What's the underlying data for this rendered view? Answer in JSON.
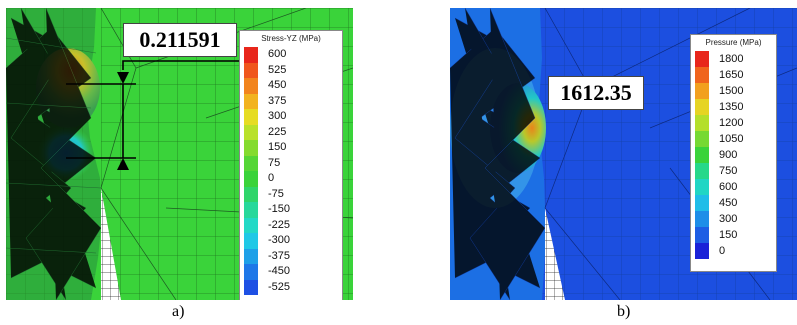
{
  "panel_a": {
    "caption": "a)",
    "measurement": "0.211591",
    "legend": {
      "title": "Stress-YZ (MPa)",
      "items": [
        {
          "label": "600",
          "color": "#e8261b"
        },
        {
          "label": "525",
          "color": "#f0561c"
        },
        {
          "label": "450",
          "color": "#f2841d"
        },
        {
          "label": "375",
          "color": "#f2b31f"
        },
        {
          "label": "300",
          "color": "#e6dc23"
        },
        {
          "label": "225",
          "color": "#b9e12a"
        },
        {
          "label": "150",
          "color": "#84db2f"
        },
        {
          "label": "75",
          "color": "#55d636"
        },
        {
          "label": "0",
          "color": "#3ad33a"
        },
        {
          "label": "-75",
          "color": "#2fd56a"
        },
        {
          "label": "-150",
          "color": "#27d89b"
        },
        {
          "label": "-225",
          "color": "#22d9c6"
        },
        {
          "label": "-300",
          "color": "#1fc8e6"
        },
        {
          "label": "-375",
          "color": "#1ea0e8"
        },
        {
          "label": "-450",
          "color": "#1e78e8"
        },
        {
          "label": "-525",
          "color": "#1e50e4"
        }
      ]
    }
  },
  "panel_b": {
    "caption": "b)",
    "measurement": "1612.35",
    "legend": {
      "title": "Pressure (MPa)",
      "items": [
        {
          "label": "1800",
          "color": "#e8261b"
        },
        {
          "label": "1650",
          "color": "#f0641c"
        },
        {
          "label": "1500",
          "color": "#f2a01e"
        },
        {
          "label": "1350",
          "color": "#e6d423"
        },
        {
          "label": "1200",
          "color": "#b4df2b"
        },
        {
          "label": "1050",
          "color": "#76d932"
        },
        {
          "label": "900",
          "color": "#3ad33a"
        },
        {
          "label": "750",
          "color": "#26d88a"
        },
        {
          "label": "600",
          "color": "#20d6c4"
        },
        {
          "label": "450",
          "color": "#1fbde8"
        },
        {
          "label": "300",
          "color": "#1e8ee8"
        },
        {
          "label": "150",
          "color": "#1e5ee4"
        },
        {
          "label": "0",
          "color": "#1a22d8"
        }
      ]
    }
  }
}
